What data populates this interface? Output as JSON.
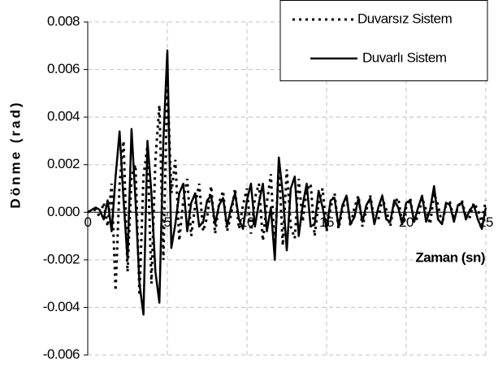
{
  "chart_data": {
    "type": "line",
    "x_label": "Zaman (sn)",
    "y_label": "Dönme (rad)",
    "xlim": [
      0,
      25
    ],
    "xticks": [
      0,
      5,
      10,
      15,
      20,
      25
    ],
    "ylim": [
      -0.006,
      0.008
    ],
    "yticks": [
      -0.006,
      -0.004,
      -0.002,
      {
        "value": 0,
        "label": "0.000"
      },
      0.002,
      0.004,
      0.006,
      0.008
    ],
    "grid": true,
    "legend": "upper right",
    "x": [
      0,
      0.25,
      0.5,
      0.75,
      1,
      1.25,
      1.5,
      1.75,
      2,
      2.25,
      2.5,
      2.75,
      3,
      3.25,
      3.5,
      3.75,
      4,
      4.25,
      4.5,
      4.75,
      5,
      5.25,
      5.5,
      5.75,
      6,
      6.25,
      6.5,
      6.75,
      7,
      7.25,
      7.5,
      7.75,
      8,
      8.25,
      8.5,
      8.75,
      9,
      9.25,
      9.5,
      9.75,
      10,
      10.25,
      10.5,
      10.75,
      11,
      11.25,
      11.5,
      11.75,
      12,
      12.25,
      12.5,
      12.75,
      13,
      13.25,
      13.5,
      13.75,
      14,
      14.25,
      14.5,
      14.75,
      15,
      15.25,
      15.5,
      15.75,
      16,
      16.25,
      16.5,
      16.75,
      17,
      17.25,
      17.5,
      17.75,
      18,
      18.25,
      18.5,
      18.75,
      19,
      19.25,
      19.5,
      19.75,
      20,
      20.25,
      20.5,
      20.75,
      21,
      21.25,
      21.5,
      21.75,
      22,
      22.25,
      22.5,
      22.75,
      23,
      23.25,
      23.5,
      23.75,
      24,
      24.25,
      24.5,
      24.75,
      25
    ],
    "series": [
      {
        "name": "Duvarsız Sistem",
        "color": "#000000",
        "style": "dashed",
        "values": [
          0,
          0.0001,
          0.0001,
          -0.0002,
          0.0004,
          -0.0006,
          0.0012,
          -0.0033,
          0.0012,
          0.003,
          -0.0025,
          0.0015,
          0.002,
          -0.0035,
          0.0015,
          0.0028,
          -0.003,
          0.0022,
          0.0045,
          -0.002,
          0.0055,
          0.0008,
          0.0022,
          -0.0012,
          0.0005,
          0.0014,
          -0.001,
          0.0003,
          0.0012,
          -0.0008,
          -0.0002,
          0.0011,
          -0.0009,
          0.0004,
          0.0009,
          -0.0008,
          -0.0001,
          0.001,
          -0.0007,
          0.0003,
          0.001,
          -0.0009,
          0.0006,
          0.0012,
          -0.0012,
          0.0004,
          0.0016,
          -0.0016,
          0.002,
          -0.0014,
          0.0018,
          -0.0006,
          -0.0011,
          0.0014,
          -0.0004,
          0.0009,
          0.0012,
          -0.001,
          0.0004,
          0.001,
          -0.0008,
          0.0002,
          0.0008,
          -0.0007,
          0.0001,
          0.0007,
          -0.0006,
          0.0002,
          0.0007,
          -0.0006,
          0.0001,
          0.0007,
          -0.0004,
          -0.0003,
          0.0006,
          0.0001,
          -0.0006,
          0.0004,
          0.0006,
          -0.0005,
          0.0002,
          0.0006,
          -0.0004,
          -0.0002,
          0.0006,
          0.0001,
          -0.0005,
          0.0008,
          0.0003,
          -0.0005,
          0.0003,
          0.0004,
          -0.0003,
          0.0002,
          0.0005,
          -0.0002,
          -0.0002,
          0.0004,
          0.0001,
          -0.0004,
          0.0005
        ]
      },
      {
        "name": "Duvarlı Sistem",
        "color": "#000000",
        "style": "solid",
        "values": [
          0,
          0.0001,
          0.0002,
          0.0001,
          -0.0003,
          0.0005,
          -0.0008,
          0.0015,
          0.0034,
          0.0005,
          -0.002,
          0.0035,
          0.0005,
          -0.003,
          -0.0043,
          0.003,
          0.0008,
          -0.0025,
          -0.0038,
          0.003,
          0.0068,
          -0.0015,
          -0.0005,
          0.0008,
          0.0012,
          -0.0008,
          0.0004,
          0.0008,
          -0.0006,
          -0.0004,
          0.0005,
          0.0007,
          -0.0005,
          0.0003,
          0.0006,
          -0.0006,
          0.0002,
          0.0008,
          -0.0003,
          -0.0007,
          0.0005,
          0.0012,
          -0.0006,
          0.0004,
          0.0012,
          -0.0008,
          0.0002,
          -0.002,
          0.0023,
          0.0008,
          -0.0016,
          0.001,
          0.0015,
          -0.001,
          0.0003,
          0.0012,
          -0.0006,
          -0.0005,
          0.0009,
          0.0002,
          -0.0007,
          0.0005,
          0.0006,
          -0.0006,
          0.0003,
          0.0007,
          -0.0005,
          -0.0002,
          0.0006,
          -0.0004,
          0.0003,
          0.0006,
          -0.0005,
          0.0002,
          0.0007,
          -0.0003,
          -0.0004,
          0.0005,
          0.0002,
          -0.0005,
          0.0004,
          0.0005,
          -0.0004,
          0.0002,
          0.0007,
          -0.0004,
          0.0001,
          0.0011,
          -0.0003,
          -0.0005,
          0.0004,
          0.0003,
          -0.0004,
          0.0003,
          0.0004,
          -0.0003,
          0.0001,
          0.0003,
          -0.0003,
          -0.0007,
          0.0002
        ]
      }
    ]
  }
}
